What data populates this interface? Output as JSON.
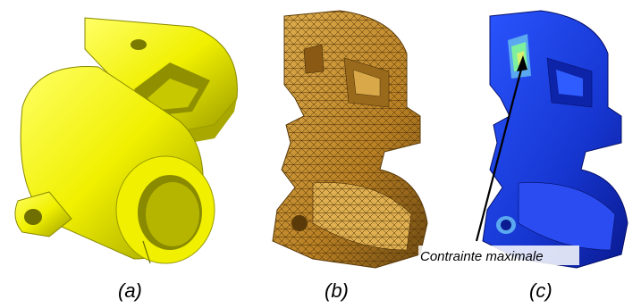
{
  "panels": [
    {
      "label": "(a)"
    },
    {
      "label": "(b)"
    },
    {
      "label": "(c)"
    }
  ],
  "annotation": {
    "text": "Contrainte maximale"
  },
  "colors": {
    "cad_yellow": "#f0f000",
    "mesh_orange": "#c08a2a",
    "stress_blue": "#1a3ad8",
    "stress_hot": "#7df0a0",
    "background": "#ffffff"
  }
}
